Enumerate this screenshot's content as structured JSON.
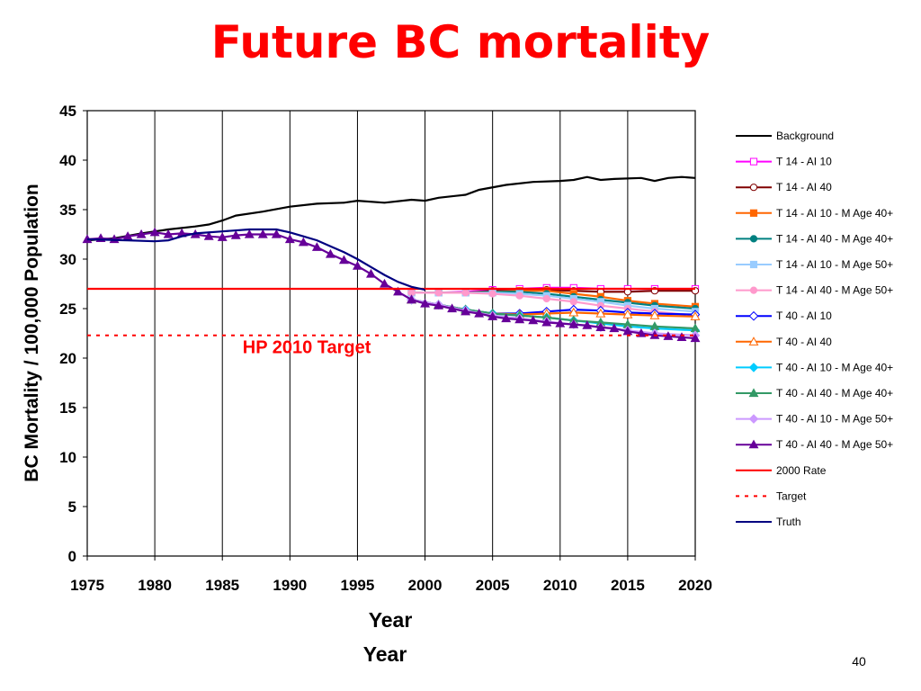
{
  "slide": {
    "title": "Future BC mortality",
    "bottom_label": "Year",
    "page_number": "40"
  },
  "chart_data": {
    "type": "line",
    "xlabel": "Year",
    "ylabel": "BC Mortality / 100,000 Population",
    "xlim": [
      1975,
      2020
    ],
    "ylim": [
      0,
      45
    ],
    "x_ticks": [
      "1975",
      "1980",
      "1985",
      "1990",
      "1995",
      "2000",
      "2005",
      "2010",
      "2015",
      "2020"
    ],
    "y_ticks": [
      "0",
      "5",
      "10",
      "15",
      "20",
      "25",
      "30",
      "35",
      "40",
      "45"
    ],
    "grid": "vertical",
    "legend_position": "right",
    "annotation": {
      "text": "HP 2010 Target",
      "x": 1986.5,
      "y": 20.5,
      "color": "#ff0000"
    },
    "series": [
      {
        "name": "Background",
        "color": "#000000",
        "marker": "none",
        "dash": "solid",
        "points": [
          [
            1975,
            31.9
          ],
          [
            1977,
            32.1
          ],
          [
            1979,
            32.6
          ],
          [
            1981,
            33.0
          ],
          [
            1983,
            33.3
          ],
          [
            1984,
            33.5
          ],
          [
            1985,
            33.9
          ],
          [
            1986,
            34.4
          ],
          [
            1988,
            34.8
          ],
          [
            1990,
            35.3
          ],
          [
            1992,
            35.6
          ],
          [
            1994,
            35.7
          ],
          [
            1995,
            35.9
          ],
          [
            1997,
            35.7
          ],
          [
            1999,
            36.0
          ],
          [
            2000,
            35.9
          ],
          [
            2001,
            36.2
          ],
          [
            2003,
            36.5
          ],
          [
            2004,
            37.0
          ],
          [
            2006,
            37.5
          ],
          [
            2008,
            37.8
          ],
          [
            2010,
            37.9
          ],
          [
            2011,
            38.0
          ],
          [
            2012,
            38.3
          ],
          [
            2013,
            38.0
          ],
          [
            2014,
            38.1
          ],
          [
            2016,
            38.2
          ],
          [
            2017,
            37.9
          ],
          [
            2018,
            38.2
          ],
          [
            2019,
            38.3
          ],
          [
            2020,
            38.2
          ]
        ]
      },
      {
        "name": "T 14 - AI 10",
        "color": "#ff00ff",
        "marker": "square-open",
        "dash": "solid",
        "points": [
          [
            1999,
            26.6
          ],
          [
            2001,
            26.6
          ],
          [
            2003,
            26.7
          ],
          [
            2005,
            26.9
          ],
          [
            2007,
            27.0
          ],
          [
            2009,
            27.1
          ],
          [
            2011,
            27.1
          ],
          [
            2013,
            27.0
          ],
          [
            2015,
            27.0
          ],
          [
            2017,
            27.0
          ],
          [
            2020,
            27.0
          ]
        ]
      },
      {
        "name": "T 14 - AI 40",
        "color": "#800000",
        "marker": "circle-open",
        "dash": "solid",
        "points": [
          [
            1999,
            26.6
          ],
          [
            2001,
            26.6
          ],
          [
            2003,
            26.6
          ],
          [
            2005,
            26.8
          ],
          [
            2007,
            26.8
          ],
          [
            2009,
            26.9
          ],
          [
            2011,
            26.8
          ],
          [
            2013,
            26.7
          ],
          [
            2015,
            26.7
          ],
          [
            2017,
            26.8
          ],
          [
            2020,
            26.8
          ]
        ]
      },
      {
        "name": "T 14 - AI 10 - M Age 40+",
        "color": "#ff6600",
        "marker": "square",
        "dash": "solid",
        "points": [
          [
            1999,
            26.6
          ],
          [
            2001,
            26.6
          ],
          [
            2003,
            26.6
          ],
          [
            2005,
            26.7
          ],
          [
            2007,
            26.8
          ],
          [
            2009,
            26.8
          ],
          [
            2011,
            26.5
          ],
          [
            2013,
            26.2
          ],
          [
            2015,
            25.8
          ],
          [
            2017,
            25.5
          ],
          [
            2020,
            25.2
          ]
        ]
      },
      {
        "name": "T 14 - AI 40 - M Age 40+",
        "color": "#008080",
        "marker": "circle",
        "dash": "solid",
        "points": [
          [
            1999,
            26.6
          ],
          [
            2001,
            26.6
          ],
          [
            2003,
            26.6
          ],
          [
            2005,
            26.7
          ],
          [
            2007,
            26.7
          ],
          [
            2009,
            26.5
          ],
          [
            2011,
            26.2
          ],
          [
            2013,
            25.9
          ],
          [
            2015,
            25.6
          ],
          [
            2017,
            25.3
          ],
          [
            2020,
            25.0
          ]
        ]
      },
      {
        "name": "T 14 - AI 10 - M Age 50+",
        "color": "#99ccff",
        "marker": "square",
        "dash": "solid",
        "points": [
          [
            1999,
            26.6
          ],
          [
            2001,
            26.6
          ],
          [
            2003,
            26.6
          ],
          [
            2005,
            26.6
          ],
          [
            2007,
            26.5
          ],
          [
            2009,
            26.3
          ],
          [
            2011,
            26.0
          ],
          [
            2013,
            25.7
          ],
          [
            2015,
            25.3
          ],
          [
            2017,
            25.0
          ],
          [
            2020,
            24.7
          ]
        ]
      },
      {
        "name": "T 14 - AI 40 - M Age 50+",
        "color": "#ff99cc",
        "marker": "circle",
        "dash": "solid",
        "points": [
          [
            1999,
            26.6
          ],
          [
            2001,
            26.6
          ],
          [
            2003,
            26.6
          ],
          [
            2005,
            26.5
          ],
          [
            2007,
            26.3
          ],
          [
            2009,
            26.0
          ],
          [
            2011,
            25.7
          ],
          [
            2013,
            25.3
          ],
          [
            2015,
            25.0
          ],
          [
            2017,
            24.7
          ],
          [
            2020,
            24.3
          ]
        ]
      },
      {
        "name": "T 40 - AI 10",
        "color": "#0000ff",
        "marker": "diamond-open",
        "dash": "solid",
        "points": [
          [
            1999,
            25.9
          ],
          [
            2001,
            25.4
          ],
          [
            2003,
            24.9
          ],
          [
            2005,
            24.5
          ],
          [
            2007,
            24.5
          ],
          [
            2009,
            24.7
          ],
          [
            2011,
            24.9
          ],
          [
            2013,
            24.8
          ],
          [
            2015,
            24.6
          ],
          [
            2017,
            24.5
          ],
          [
            2020,
            24.4
          ]
        ]
      },
      {
        "name": "T 40 - AI 40",
        "color": "#ff6600",
        "marker": "triangle-open",
        "dash": "solid",
        "points": [
          [
            1999,
            25.9
          ],
          [
            2001,
            25.4
          ],
          [
            2003,
            24.9
          ],
          [
            2005,
            24.5
          ],
          [
            2007,
            24.4
          ],
          [
            2009,
            24.5
          ],
          [
            2011,
            24.6
          ],
          [
            2013,
            24.5
          ],
          [
            2015,
            24.4
          ],
          [
            2017,
            24.3
          ],
          [
            2020,
            24.2
          ]
        ]
      },
      {
        "name": "T 40 - AI 10 - M Age 40+",
        "color": "#00ccff",
        "marker": "diamond",
        "dash": "solid",
        "points": [
          [
            1999,
            25.9
          ],
          [
            2001,
            25.4
          ],
          [
            2003,
            24.9
          ],
          [
            2005,
            24.5
          ],
          [
            2007,
            24.3
          ],
          [
            2009,
            24.1
          ],
          [
            2011,
            23.8
          ],
          [
            2013,
            23.5
          ],
          [
            2015,
            23.2
          ],
          [
            2017,
            23.0
          ],
          [
            2020,
            22.8
          ]
        ]
      },
      {
        "name": "T 40 - AI 40 - M Age 40+",
        "color": "#339966",
        "marker": "triangle",
        "dash": "solid",
        "points": [
          [
            1999,
            25.9
          ],
          [
            2001,
            25.4
          ],
          [
            2003,
            24.9
          ],
          [
            2005,
            24.5
          ],
          [
            2007,
            24.3
          ],
          [
            2009,
            24.1
          ],
          [
            2011,
            23.8
          ],
          [
            2013,
            23.6
          ],
          [
            2015,
            23.4
          ],
          [
            2017,
            23.2
          ],
          [
            2020,
            23.0
          ]
        ]
      },
      {
        "name": "T 40 - AI 10 - M Age 50+",
        "color": "#cc99ff",
        "marker": "diamond",
        "dash": "solid",
        "points": [
          [
            1999,
            25.9
          ],
          [
            2001,
            25.4
          ],
          [
            2003,
            24.8
          ],
          [
            2005,
            24.3
          ],
          [
            2007,
            24.0
          ],
          [
            2009,
            23.7
          ],
          [
            2011,
            23.4
          ],
          [
            2013,
            23.1
          ],
          [
            2015,
            22.8
          ],
          [
            2017,
            22.5
          ],
          [
            2020,
            22.3
          ]
        ]
      },
      {
        "name": "T 40 - AI 40 - M Age 50+",
        "color": "#660099",
        "marker": "triangle",
        "dash": "solid",
        "points": [
          [
            1975,
            32.0
          ],
          [
            1976,
            32.1
          ],
          [
            1977,
            32.0
          ],
          [
            1978,
            32.3
          ],
          [
            1979,
            32.5
          ],
          [
            1980,
            32.7
          ],
          [
            1981,
            32.5
          ],
          [
            1982,
            32.6
          ],
          [
            1983,
            32.5
          ],
          [
            1984,
            32.3
          ],
          [
            1985,
            32.2
          ],
          [
            1986,
            32.4
          ],
          [
            1987,
            32.5
          ],
          [
            1988,
            32.5
          ],
          [
            1989,
            32.5
          ],
          [
            1990,
            32.0
          ],
          [
            1991,
            31.7
          ],
          [
            1992,
            31.2
          ],
          [
            1993,
            30.5
          ],
          [
            1994,
            29.9
          ],
          [
            1995,
            29.3
          ],
          [
            1996,
            28.5
          ],
          [
            1997,
            27.5
          ],
          [
            1998,
            26.7
          ],
          [
            1999,
            25.9
          ],
          [
            2000,
            25.5
          ],
          [
            2001,
            25.3
          ],
          [
            2002,
            25.0
          ],
          [
            2003,
            24.7
          ],
          [
            2004,
            24.5
          ],
          [
            2005,
            24.2
          ],
          [
            2006,
            24.0
          ],
          [
            2007,
            23.9
          ],
          [
            2008,
            23.8
          ],
          [
            2009,
            23.6
          ],
          [
            2010,
            23.5
          ],
          [
            2011,
            23.4
          ],
          [
            2012,
            23.3
          ],
          [
            2013,
            23.1
          ],
          [
            2014,
            23.0
          ],
          [
            2015,
            22.7
          ],
          [
            2016,
            22.5
          ],
          [
            2017,
            22.3
          ],
          [
            2018,
            22.2
          ],
          [
            2019,
            22.1
          ],
          [
            2020,
            22.0
          ]
        ]
      },
      {
        "name": "2000 Rate",
        "color": "#ff0000",
        "marker": "none",
        "dash": "solid",
        "points": [
          [
            1975,
            27.0
          ],
          [
            2020,
            27.0
          ]
        ]
      },
      {
        "name": "Target",
        "color": "#ff0000",
        "marker": "none",
        "dash": "dashed",
        "points": [
          [
            1975,
            22.3
          ],
          [
            2020,
            22.3
          ]
        ]
      },
      {
        "name": "Truth",
        "color": "#000080",
        "marker": "none",
        "dash": "solid",
        "points": [
          [
            1975,
            32.0
          ],
          [
            1978,
            31.9
          ],
          [
            1980,
            31.8
          ],
          [
            1981,
            31.9
          ],
          [
            1982,
            32.3
          ],
          [
            1983,
            32.6
          ],
          [
            1985,
            32.8
          ],
          [
            1987,
            33.0
          ],
          [
            1989,
            33.0
          ],
          [
            1990,
            32.7
          ],
          [
            1991,
            32.3
          ],
          [
            1992,
            31.9
          ],
          [
            1993,
            31.3
          ],
          [
            1994,
            30.7
          ],
          [
            1995,
            30.0
          ],
          [
            1996,
            29.2
          ],
          [
            1997,
            28.4
          ],
          [
            1998,
            27.7
          ],
          [
            1999,
            27.2
          ],
          [
            2000,
            26.9
          ]
        ]
      }
    ]
  }
}
